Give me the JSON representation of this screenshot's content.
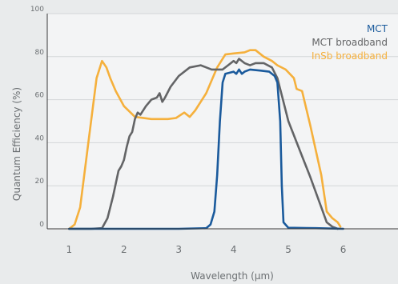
{
  "chart_data": {
    "type": "line",
    "title": "",
    "xlabel": "Wavelength (µm)",
    "ylabel": "Quantum Efficiency (%)",
    "xlim": [
      0.6,
      7.0
    ],
    "ylim": [
      0,
      100
    ],
    "x_ticks": [
      "1",
      "2",
      "3",
      "4",
      "5",
      "6"
    ],
    "y_ticks": [
      "0",
      "20",
      "40",
      "60",
      "80",
      "100"
    ],
    "grid": "horizontal",
    "legend_position": "top-right",
    "colors": {
      "background": "#e9ebec",
      "plot_background": "#f3f4f5",
      "grid": "#d3d6d8",
      "axis": "#3a3a3a"
    },
    "series": [
      {
        "name": "MCT",
        "color": "#1a5a9c",
        "points": [
          [
            1.0,
            0
          ],
          [
            2.0,
            0
          ],
          [
            3.0,
            0
          ],
          [
            3.5,
            0.3
          ],
          [
            3.58,
            2
          ],
          [
            3.65,
            8
          ],
          [
            3.7,
            25
          ],
          [
            3.75,
            50
          ],
          [
            3.8,
            68
          ],
          [
            3.85,
            72
          ],
          [
            4.0,
            73
          ],
          [
            4.05,
            72
          ],
          [
            4.1,
            74
          ],
          [
            4.15,
            72
          ],
          [
            4.2,
            73
          ],
          [
            4.3,
            74
          ],
          [
            4.5,
            73.5
          ],
          [
            4.65,
            73
          ],
          [
            4.75,
            71
          ],
          [
            4.8,
            68
          ],
          [
            4.85,
            50
          ],
          [
            4.88,
            20
          ],
          [
            4.91,
            3
          ],
          [
            5.0,
            0.5
          ],
          [
            5.5,
            0.3
          ],
          [
            6.0,
            0
          ]
        ]
      },
      {
        "name": "MCT broadband",
        "color": "#636466",
        "points": [
          [
            1.0,
            0
          ],
          [
            1.4,
            0
          ],
          [
            1.6,
            0.3
          ],
          [
            1.7,
            5
          ],
          [
            1.8,
            15
          ],
          [
            1.9,
            27
          ],
          [
            1.95,
            29
          ],
          [
            2.0,
            32
          ],
          [
            2.05,
            38
          ],
          [
            2.1,
            43
          ],
          [
            2.15,
            45
          ],
          [
            2.2,
            51
          ],
          [
            2.25,
            54
          ],
          [
            2.3,
            53
          ],
          [
            2.4,
            57
          ],
          [
            2.5,
            60
          ],
          [
            2.6,
            61
          ],
          [
            2.65,
            63
          ],
          [
            2.7,
            59
          ],
          [
            2.75,
            61
          ],
          [
            2.85,
            66
          ],
          [
            3.0,
            71
          ],
          [
            3.2,
            75
          ],
          [
            3.4,
            76
          ],
          [
            3.6,
            74
          ],
          [
            3.8,
            74
          ],
          [
            3.9,
            76
          ],
          [
            4.0,
            78
          ],
          [
            4.05,
            77
          ],
          [
            4.1,
            79
          ],
          [
            4.2,
            77
          ],
          [
            4.3,
            76
          ],
          [
            4.4,
            77
          ],
          [
            4.55,
            77
          ],
          [
            4.7,
            75
          ],
          [
            4.8,
            70
          ],
          [
            4.9,
            60
          ],
          [
            5.0,
            50
          ],
          [
            5.2,
            37
          ],
          [
            5.4,
            24
          ],
          [
            5.6,
            10
          ],
          [
            5.7,
            3
          ],
          [
            5.8,
            1
          ],
          [
            5.9,
            0
          ]
        ]
      },
      {
        "name": "InSb broadband",
        "color": "#f5b03c",
        "points": [
          [
            1.0,
            0
          ],
          [
            1.1,
            2
          ],
          [
            1.2,
            10
          ],
          [
            1.35,
            40
          ],
          [
            1.5,
            70
          ],
          [
            1.6,
            78
          ],
          [
            1.68,
            75
          ],
          [
            1.75,
            70
          ],
          [
            1.85,
            64
          ],
          [
            2.0,
            57
          ],
          [
            2.2,
            52
          ],
          [
            2.5,
            51
          ],
          [
            2.8,
            51
          ],
          [
            2.95,
            51.5
          ],
          [
            3.1,
            54
          ],
          [
            3.2,
            52
          ],
          [
            3.3,
            55
          ],
          [
            3.5,
            63
          ],
          [
            3.7,
            75
          ],
          [
            3.85,
            81
          ],
          [
            4.0,
            81.5
          ],
          [
            4.2,
            82
          ],
          [
            4.3,
            83
          ],
          [
            4.4,
            83
          ],
          [
            4.55,
            80
          ],
          [
            4.7,
            78
          ],
          [
            4.8,
            76
          ],
          [
            4.95,
            74
          ],
          [
            5.1,
            70
          ],
          [
            5.15,
            65
          ],
          [
            5.25,
            64
          ],
          [
            5.4,
            48
          ],
          [
            5.6,
            25
          ],
          [
            5.7,
            8
          ],
          [
            5.8,
            5
          ],
          [
            5.9,
            3
          ],
          [
            5.95,
            1
          ]
        ]
      }
    ]
  }
}
